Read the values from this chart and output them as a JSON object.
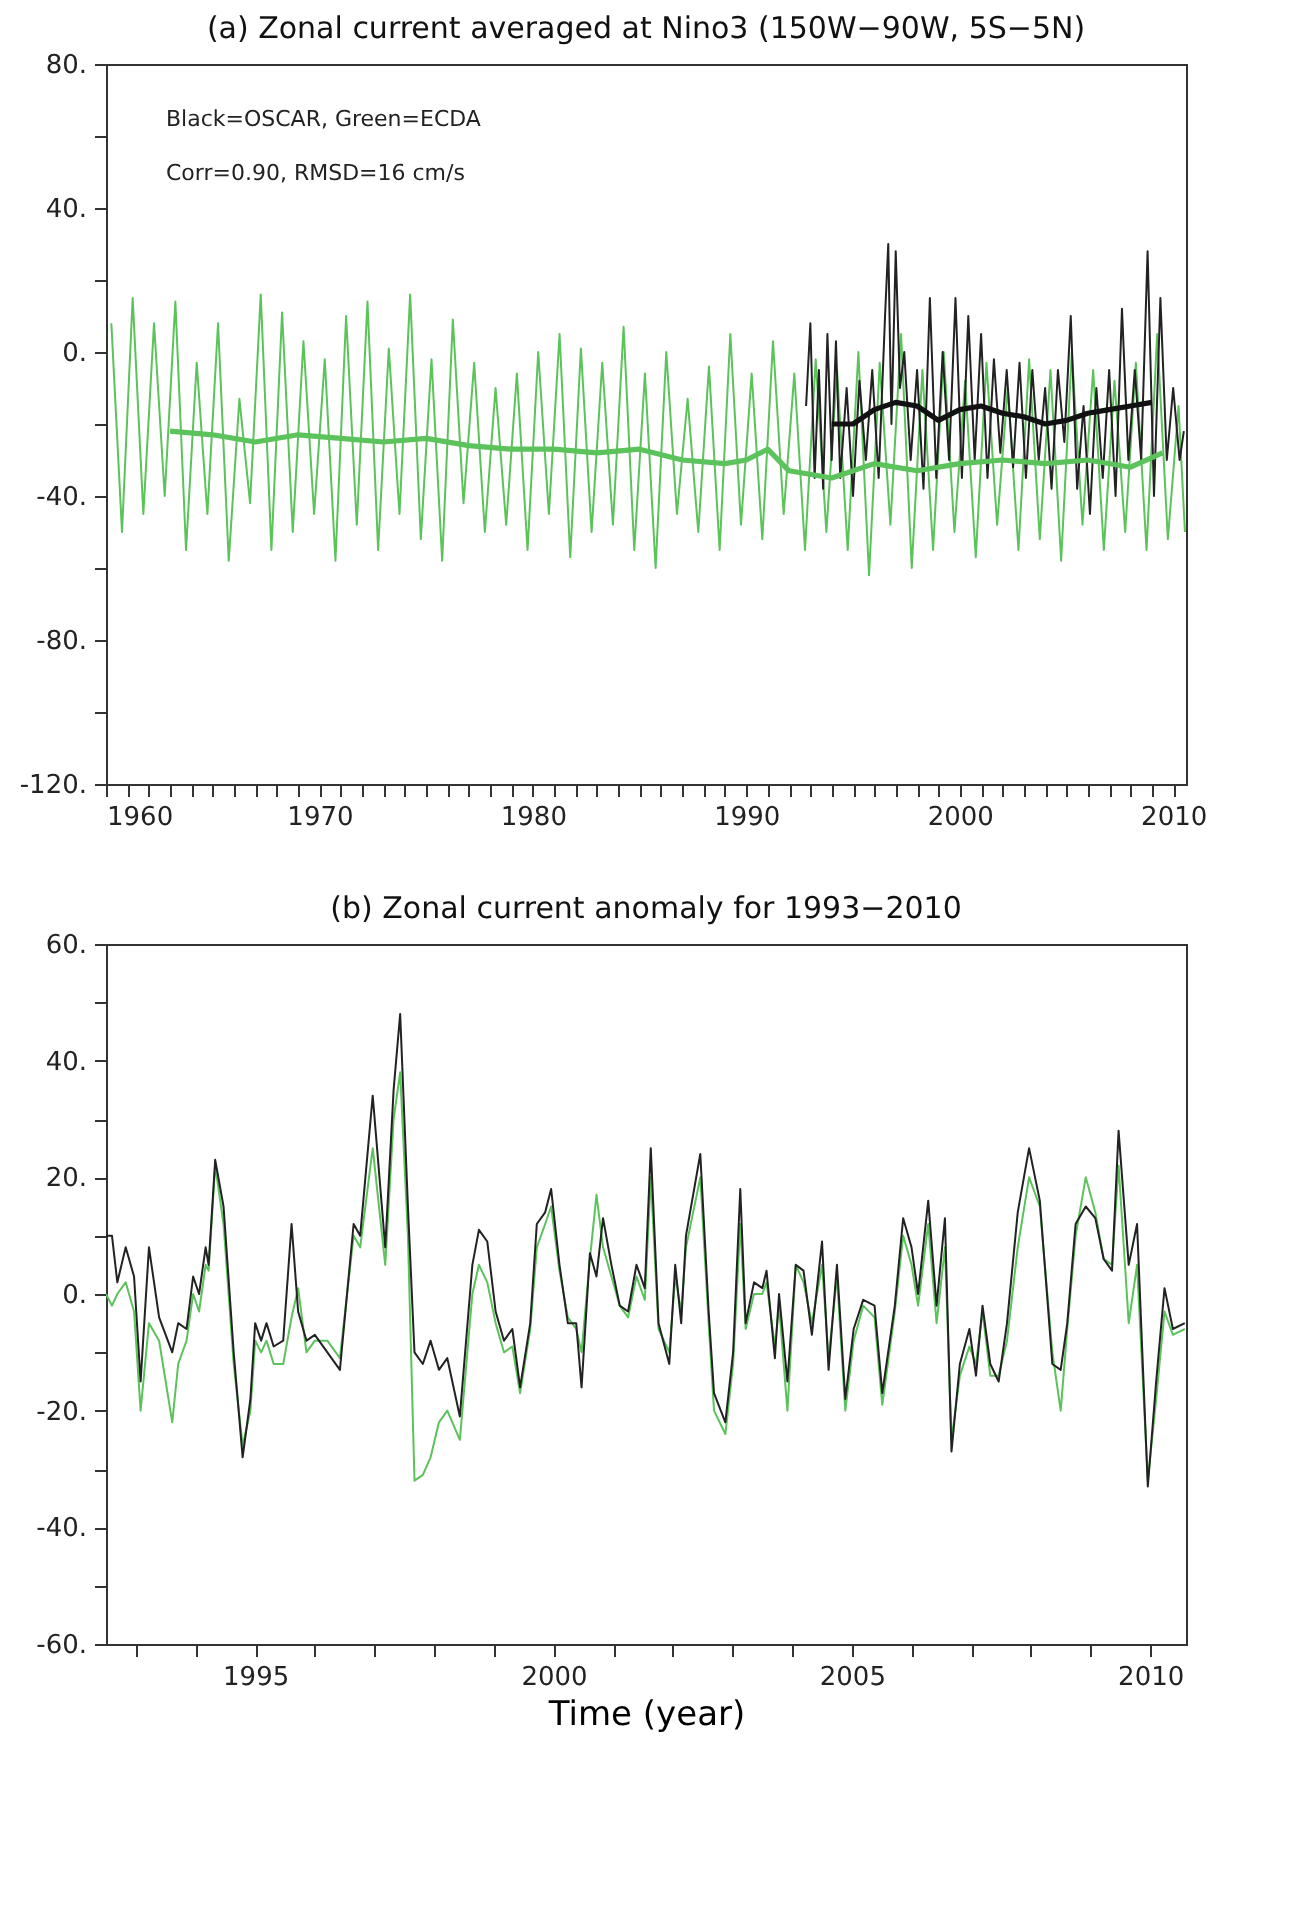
{
  "chart_data": [
    {
      "type": "line",
      "title": "(a) Zonal current averaged at Nino3 (150W−90W, 5S−5N)",
      "annotations": [
        "Black=OSCAR, Green=ECDA",
        "Corr=0.90, RMSD=16 cm/s"
      ],
      "xlim": [
        1960,
        2010.6
      ],
      "xticks": [
        1960,
        {
          "value": 1961,
          "label": null
        },
        {
          "value": 1962,
          "label": null
        },
        {
          "value": 1963,
          "label": null
        },
        {
          "value": 1964,
          "label": null
        },
        {
          "value": 1965,
          "label": null
        },
        {
          "value": 1966,
          "label": null
        },
        {
          "value": 1967,
          "label": null
        },
        {
          "value": 1968,
          "label": null
        },
        {
          "value": 1969,
          "label": null
        },
        1970,
        {
          "value": 1971,
          "label": null
        },
        {
          "value": 1972,
          "label": null
        },
        {
          "value": 1973,
          "label": null
        },
        {
          "value": 1974,
          "label": null
        },
        {
          "value": 1975,
          "label": null
        },
        {
          "value": 1976,
          "label": null
        },
        {
          "value": 1977,
          "label": null
        },
        {
          "value": 1978,
          "label": null
        },
        {
          "value": 1979,
          "label": null
        },
        1980,
        {
          "value": 1981,
          "label": null
        },
        {
          "value": 1982,
          "label": null
        },
        {
          "value": 1983,
          "label": null
        },
        {
          "value": 1984,
          "label": null
        },
        {
          "value": 1985,
          "label": null
        },
        {
          "value": 1986,
          "label": null
        },
        {
          "value": 1987,
          "label": null
        },
        {
          "value": 1988,
          "label": null
        },
        {
          "value": 1989,
          "label": null
        },
        1990,
        {
          "value": 1991,
          "label": null
        },
        {
          "value": 1992,
          "label": null
        },
        {
          "value": 1993,
          "label": null
        },
        {
          "value": 1994,
          "label": null
        },
        {
          "value": 1995,
          "label": null
        },
        {
          "value": 1996,
          "label": null
        },
        {
          "value": 1997,
          "label": null
        },
        {
          "value": 1998,
          "label": null
        },
        {
          "value": 1999,
          "label": null
        },
        2000,
        {
          "value": 2001,
          "label": null
        },
        {
          "value": 2002,
          "label": null
        },
        {
          "value": 2003,
          "label": null
        },
        {
          "value": 2004,
          "label": null
        },
        {
          "value": 2005,
          "label": null
        },
        {
          "value": 2006,
          "label": null
        },
        {
          "value": 2007,
          "label": null
        },
        {
          "value": 2008,
          "label": null
        },
        {
          "value": 2009,
          "label": null
        },
        2010
      ],
      "ylim": [
        -120,
        80
      ],
      "yticks": [
        {
          "value": 80,
          "label": "80."
        },
        {
          "value": 60,
          "label": null
        },
        {
          "value": 40,
          "label": "40."
        },
        {
          "value": 20,
          "label": null
        },
        {
          "value": 0,
          "label": "0."
        },
        {
          "value": -20,
          "label": null
        },
        {
          "value": -40,
          "label": "-40."
        },
        {
          "value": -60,
          "label": null
        },
        {
          "value": -80,
          "label": "-80."
        },
        {
          "value": -100,
          "label": null
        },
        {
          "value": -120,
          "label": "-120."
        }
      ],
      "grid": false,
      "line_style": "solid",
      "marker": "none",
      "series": [
        {
          "color": "#5cc25c",
          "x": [
            1960.25,
            1960.75,
            1961.25,
            1961.75,
            1962.25,
            1962.75,
            1963.25,
            1963.75,
            1964.25,
            1964.75,
            1965.25,
            1965.75,
            1966.25,
            1966.75,
            1967.25,
            1967.75,
            1968.25,
            1968.75,
            1969.25,
            1969.75,
            1970.25,
            1970.75,
            1971.25,
            1971.75,
            1972.25,
            1972.75,
            1973.25,
            1973.75,
            1974.25,
            1974.75,
            1975.25,
            1975.75,
            1976.25,
            1976.75,
            1977.25,
            1977.75,
            1978.25,
            1978.75,
            1979.25,
            1979.75,
            1980.25,
            1980.75,
            1981.25,
            1981.75,
            1982.25,
            1982.75,
            1983.25,
            1983.75,
            1984.25,
            1984.75,
            1985.25,
            1985.75,
            1986.25,
            1986.75,
            1987.25,
            1987.75,
            1988.25,
            1988.75,
            1989.25,
            1989.75,
            1990.25,
            1990.75,
            1991.25,
            1991.75,
            1992.25,
            1992.75,
            1993.25,
            1993.75,
            1994.25,
            1994.75,
            1995.25,
            1995.75,
            1996.25,
            1996.75,
            1997.25,
            1997.75,
            1998.25,
            1998.75,
            1999.25,
            1999.75,
            2000.25,
            2000.75,
            2001.25,
            2001.75,
            2002.25,
            2002.75,
            2003.25,
            2003.75,
            2004.25,
            2004.75,
            2005.25,
            2005.75,
            2006.25,
            2006.75,
            2007.25,
            2007.75,
            2008.25,
            2008.75,
            2009.25,
            2009.75,
            2010.25,
            2010.55
          ],
          "values": [
            8,
            -50,
            15,
            -45,
            8,
            -40,
            14,
            -55,
            -3,
            -45,
            8,
            -58,
            -13,
            -42,
            16,
            -55,
            11,
            -50,
            3,
            -45,
            -2,
            -58,
            10,
            -48,
            14,
            -55,
            1,
            -45,
            16,
            -52,
            -2,
            -58,
            9,
            -42,
            -3,
            -50,
            -10,
            -48,
            -6,
            -55,
            0,
            -45,
            5,
            -57,
            1,
            -50,
            -3,
            -48,
            7,
            -55,
            -6,
            -60,
            0,
            -45,
            -13,
            -50,
            -4,
            -55,
            5,
            -48,
            -6,
            -52,
            3,
            -45,
            -6,
            -55,
            -2,
            -50,
            -5,
            -55,
            0,
            -62,
            -3,
            -48,
            5,
            -60,
            -5,
            -55,
            0,
            -50,
            -8,
            -57,
            -3,
            -48,
            -10,
            -55,
            -2,
            -52,
            -5,
            -58,
            0,
            -48,
            -5,
            -55,
            -8,
            -50,
            -3,
            -55,
            5,
            -52,
            -15,
            -50
          ]
        },
        {
          "color": "#222222",
          "x": [
            1992.8,
            1993.0,
            1993.2,
            1993.4,
            1993.6,
            1993.8,
            1994.0,
            1994.2,
            1994.4,
            1994.7,
            1995.0,
            1995.3,
            1995.6,
            1995.9,
            1996.2,
            1996.5,
            1996.65,
            1996.8,
            1997.0,
            1997.2,
            1997.4,
            1997.7,
            1998.0,
            1998.3,
            1998.6,
            1998.9,
            1999.2,
            1999.5,
            1999.8,
            2000.1,
            2000.4,
            2000.7,
            2001.0,
            2001.3,
            2001.6,
            2001.9,
            2002.2,
            2002.5,
            2002.8,
            2003.1,
            2003.4,
            2003.7,
            2004.0,
            2004.3,
            2004.6,
            2004.9,
            2005.2,
            2005.5,
            2005.8,
            2006.1,
            2006.4,
            2006.7,
            2007.0,
            2007.3,
            2007.6,
            2007.9,
            2008.2,
            2008.5,
            2008.8,
            2009.1,
            2009.4,
            2009.7,
            2010.0,
            2010.3,
            2010.5
          ],
          "values": [
            -15,
            8,
            -35,
            -5,
            -38,
            5,
            -30,
            3,
            -35,
            -10,
            -40,
            -8,
            -30,
            -5,
            -35,
            10,
            30,
            -20,
            28,
            -10,
            0,
            -30,
            -5,
            -38,
            15,
            -35,
            0,
            -30,
            15,
            -35,
            10,
            -30,
            5,
            -35,
            -2,
            -28,
            -5,
            -32,
            -3,
            -35,
            -5,
            -30,
            -10,
            -38,
            -5,
            -25,
            10,
            -38,
            -15,
            -45,
            -10,
            -35,
            -5,
            -40,
            12,
            -30,
            -5,
            -30,
            28,
            -40,
            15,
            -30,
            -10,
            -30,
            -22
          ]
        },
        {
          "color": "#5cc25c",
          "x": [
            1963,
            1965,
            1967,
            1969,
            1971,
            1973,
            1975,
            1977,
            1979,
            1981,
            1983,
            1985,
            1987,
            1989,
            1990,
            1991,
            1992,
            1994,
            1996,
            1998,
            2000,
            2002,
            2004,
            2006,
            2008,
            2009.5
          ],
          "values": [
            -22,
            -23,
            -25,
            -23,
            -24,
            -25,
            -24,
            -26,
            -27,
            -27,
            -28,
            -27,
            -30,
            -31,
            -30,
            -27,
            -33,
            -35,
            -31,
            -33,
            -31,
            -30,
            -31,
            -30,
            -32,
            -28
          ]
        },
        {
          "color": "#111111",
          "x": [
            1994,
            1995,
            1996,
            1997,
            1998,
            1999,
            2000,
            2001,
            2002,
            2003,
            2004,
            2005,
            2006,
            2007,
            2008,
            2009
          ],
          "values": [
            -20,
            -20,
            -16,
            -14,
            -15,
            -19,
            -16,
            -15,
            -17,
            -18,
            -20,
            -19,
            -17,
            -16,
            -15,
            -14
          ]
        }
      ]
    },
    {
      "type": "line",
      "title": "(b) Zonal current anomaly for 1993−2010",
      "xlabel": "Time (year)",
      "xlim": [
        1992.5,
        2010.6
      ],
      "xticks": [
        {
          "value": 1993,
          "label": null
        },
        {
          "value": 1994,
          "label": null
        },
        1995,
        {
          "value": 1996,
          "label": null
        },
        {
          "value": 1997,
          "label": null
        },
        {
          "value": 1998,
          "label": null
        },
        {
          "value": 1999,
          "label": null
        },
        2000,
        {
          "value": 2001,
          "label": null
        },
        {
          "value": 2002,
          "label": null
        },
        {
          "value": 2003,
          "label": null
        },
        {
          "value": 2004,
          "label": null
        },
        2005,
        {
          "value": 2006,
          "label": null
        },
        {
          "value": 2007,
          "label": null
        },
        {
          "value": 2008,
          "label": null
        },
        {
          "value": 2009,
          "label": null
        },
        2010
      ],
      "ylim": [
        -60,
        60
      ],
      "yticks": [
        {
          "value": 60,
          "label": "60."
        },
        {
          "value": 50,
          "label": null
        },
        {
          "value": 40,
          "label": "40."
        },
        {
          "value": 30,
          "label": null
        },
        {
          "value": 20,
          "label": "20."
        },
        {
          "value": 10,
          "label": null
        },
        {
          "value": 0,
          "label": "0."
        },
        {
          "value": -10,
          "label": null
        },
        {
          "value": -20,
          "label": "-20."
        },
        {
          "value": -30,
          "label": null
        },
        {
          "value": -40,
          "label": "-40."
        },
        {
          "value": -50,
          "label": null
        },
        {
          "value": -60,
          "label": "-60."
        }
      ],
      "grid": false,
      "line_style": "solid",
      "marker": "none",
      "series": [
        {
          "color": "#5cc25c",
          "x": [
            1992.5,
            1992.6,
            1992.69,
            1992.83,
            1992.97,
            1993.08,
            1993.22,
            1993.39,
            1993.5,
            1993.61,
            1993.71,
            1993.85,
            1993.96,
            1994.06,
            1994.17,
            1994.22,
            1994.33,
            1994.47,
            1994.64,
            1994.79,
            1994.92,
            1995.0,
            1995.1,
            1995.19,
            1995.31,
            1995.47,
            1995.61,
            1995.72,
            1995.86,
            1996.0,
            1996.21,
            1996.42,
            1996.65,
            1996.76,
            1996.97,
            1997.18,
            1997.32,
            1997.43,
            1997.56,
            1997.67,
            1997.81,
            1997.94,
            1998.08,
            1998.22,
            1998.43,
            1998.64,
            1998.75,
            1998.89,
            1999.03,
            1999.17,
            1999.31,
            1999.44,
            1999.61,
            1999.72,
            1999.86,
            1999.96,
            2000.1,
            2000.24,
            2000.38,
            2000.47,
            2000.61,
            2000.72,
            2000.83,
            2000.97,
            2001.11,
            2001.25,
            2001.39,
            2001.53,
            2001.63,
            2001.76,
            2001.94,
            2002.04,
            2002.14,
            2002.22,
            2002.46,
            2002.6,
            2002.69,
            2002.88,
            2003.01,
            2003.13,
            2003.22,
            2003.36,
            2003.5,
            2003.57,
            2003.71,
            2003.78,
            2003.92,
            2004.06,
            2004.19,
            2004.33,
            2004.5,
            2004.61,
            2004.75,
            2004.89,
            2005.03,
            2005.19,
            2005.38,
            2005.51,
            2005.72,
            2005.86,
            2006.0,
            2006.11,
            2006.28,
            2006.42,
            2006.56,
            2006.67,
            2006.81,
            2006.97,
            2007.08,
            2007.19,
            2007.32,
            2007.46,
            2007.6,
            2007.78,
            2007.97,
            2008.15,
            2008.36,
            2008.5,
            2008.61,
            2008.75,
            2008.92,
            2009.08,
            2009.22,
            2009.36,
            2009.47,
            2009.64,
            2009.78,
            2009.96,
            2010.1,
            2010.24,
            2010.38,
            2010.58
          ],
          "values": [
            0,
            -2,
            0,
            2,
            -3,
            -20,
            -5,
            -8,
            -15,
            -22,
            -12,
            -8,
            0,
            -3,
            5,
            4,
            22,
            12,
            -12,
            -26,
            -20,
            -8,
            -10,
            -8,
            -12,
            -12,
            -4,
            1,
            -10,
            -8,
            -8,
            -11,
            10,
            8,
            25,
            5,
            30,
            38,
            10,
            -32,
            -31,
            -28,
            -22,
            -20,
            -25,
            0,
            5,
            2,
            -5,
            -10,
            -9,
            -17,
            -6,
            8,
            12,
            15,
            4,
            -4,
            -6,
            -10,
            6,
            17,
            8,
            3,
            -2,
            -4,
            3,
            -1,
            20,
            -6,
            -10,
            3,
            -3,
            8,
            20,
            -5,
            -20,
            -24,
            -12,
            12,
            -6,
            0,
            0,
            2,
            -9,
            -2,
            -20,
            5,
            2,
            -5,
            5,
            -11,
            3,
            -20,
            -8,
            -2,
            -4,
            -19,
            -3,
            10,
            5,
            -2,
            12,
            -5,
            8,
            -25,
            -14,
            -9,
            -12,
            -3,
            -14,
            -14,
            -8,
            8,
            20,
            15,
            -10,
            -20,
            -6,
            10,
            20,
            14,
            6,
            5,
            22,
            -5,
            5,
            -32,
            -18,
            -3,
            -7,
            -6
          ]
        },
        {
          "color": "#222222",
          "x": [
            1992.5,
            1992.6,
            1992.69,
            1992.83,
            1992.97,
            1993.08,
            1993.22,
            1993.39,
            1993.5,
            1993.61,
            1993.71,
            1993.85,
            1993.96,
            1994.06,
            1994.17,
            1994.22,
            1994.33,
            1994.47,
            1994.64,
            1994.79,
            1994.92,
            1995.0,
            1995.1,
            1995.19,
            1995.31,
            1995.47,
            1995.61,
            1995.72,
            1995.86,
            1996.0,
            1996.21,
            1996.42,
            1996.65,
            1996.76,
            1996.97,
            1997.18,
            1997.32,
            1997.43,
            1997.56,
            1997.67,
            1997.81,
            1997.94,
            1998.08,
            1998.22,
            1998.43,
            1998.64,
            1998.75,
            1998.89,
            1999.03,
            1999.17,
            1999.31,
            1999.44,
            1999.61,
            1999.72,
            1999.86,
            1999.96,
            2000.1,
            2000.24,
            2000.38,
            2000.47,
            2000.61,
            2000.72,
            2000.83,
            2000.97,
            2001.11,
            2001.25,
            2001.39,
            2001.53,
            2001.63,
            2001.76,
            2001.94,
            2002.04,
            2002.14,
            2002.22,
            2002.46,
            2002.6,
            2002.69,
            2002.88,
            2003.01,
            2003.13,
            2003.22,
            2003.36,
            2003.5,
            2003.57,
            2003.71,
            2003.78,
            2003.92,
            2004.06,
            2004.19,
            2004.33,
            2004.5,
            2004.61,
            2004.75,
            2004.89,
            2005.03,
            2005.19,
            2005.38,
            2005.51,
            2005.72,
            2005.86,
            2006.0,
            2006.11,
            2006.28,
            2006.42,
            2006.56,
            2006.67,
            2006.81,
            2006.97,
            2007.08,
            2007.19,
            2007.32,
            2007.46,
            2007.6,
            2007.78,
            2007.97,
            2008.15,
            2008.36,
            2008.5,
            2008.61,
            2008.75,
            2008.92,
            2009.08,
            2009.22,
            2009.36,
            2009.47,
            2009.64,
            2009.78,
            2009.96,
            2010.1,
            2010.24,
            2010.38,
            2010.58
          ],
          "values": [
            10,
            10,
            2,
            8,
            3,
            -15,
            8,
            -4,
            -7,
            -10,
            -5,
            -6,
            3,
            0,
            8,
            5,
            23,
            15,
            -10,
            -28,
            -18,
            -5,
            -8,
            -5,
            -9,
            -8,
            12,
            -3,
            -8,
            -7,
            -10,
            -13,
            12,
            10,
            34,
            8,
            35,
            48,
            15,
            -10,
            -12,
            -8,
            -13,
            -11,
            -21,
            5,
            11,
            9,
            -3,
            -8,
            -6,
            -16,
            -5,
            12,
            14,
            18,
            5,
            -5,
            -5,
            -16,
            7,
            3,
            13,
            5,
            -2,
            -3,
            5,
            1,
            25,
            -5,
            -12,
            5,
            -5,
            10,
            24,
            -3,
            -17,
            -22,
            -10,
            18,
            -5,
            2,
            1,
            4,
            -11,
            0,
            -15,
            5,
            4,
            -7,
            9,
            -13,
            5,
            -18,
            -6,
            -1,
            -2,
            -17,
            -2,
            13,
            8,
            0,
            16,
            -2,
            13,
            -27,
            -12,
            -6,
            -14,
            -2,
            -12,
            -15,
            -5,
            14,
            25,
            16,
            -12,
            -13,
            -5,
            12,
            15,
            13,
            6,
            4,
            28,
            5,
            12,
            -33,
            -15,
            1,
            -6,
            -5
          ]
        }
      ]
    }
  ]
}
